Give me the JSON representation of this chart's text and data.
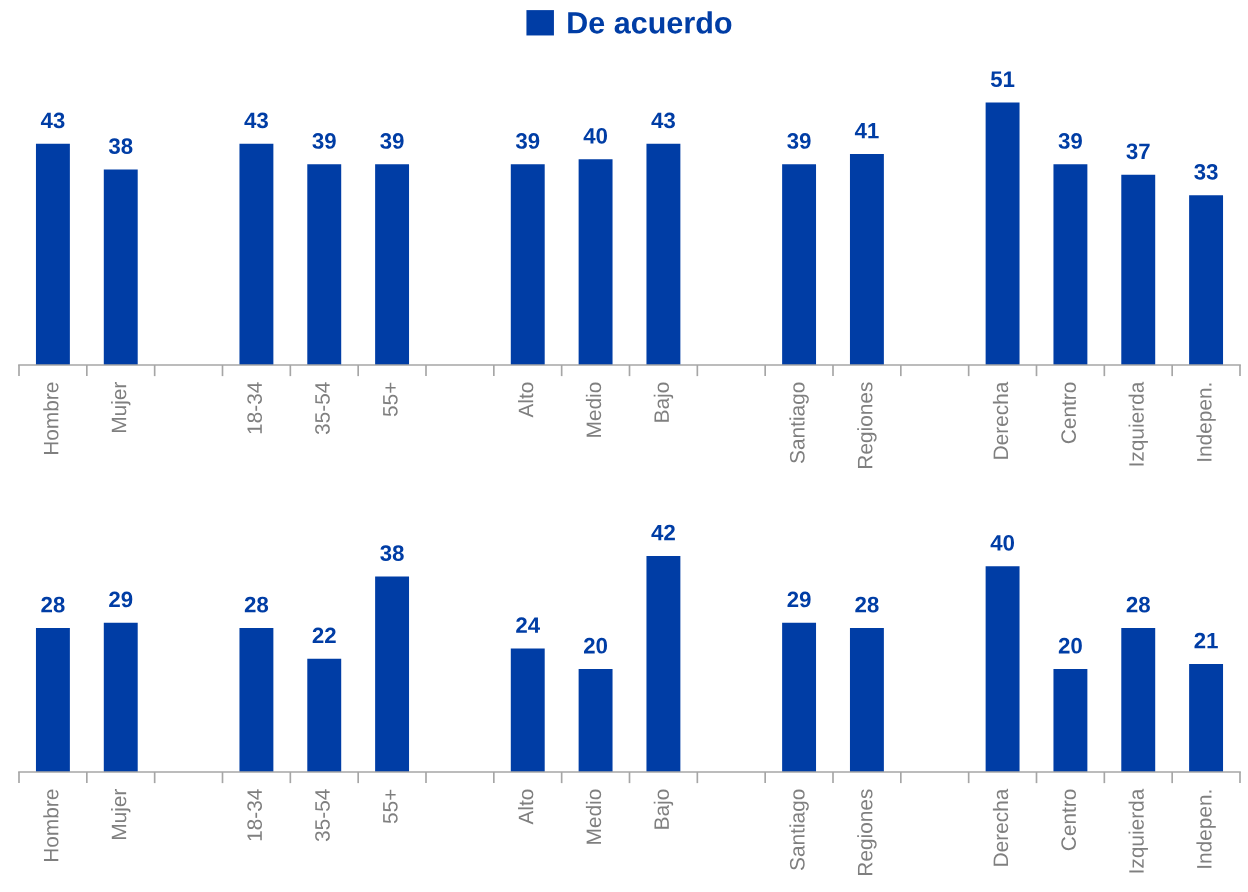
{
  "chart_data": [
    {
      "type": "bar",
      "categories": [
        "Hombre",
        "Mujer",
        null,
        "18-34",
        "35-54",
        "55+",
        null,
        "Alto",
        "Medio",
        "Bajo",
        null,
        "Santiago",
        "Regiones",
        null,
        "Derecha",
        "Centro",
        "Izquierda",
        "Indepen."
      ],
      "series": [
        {
          "name": "De acuerdo",
          "color": "#003da5",
          "values": [
            43,
            38,
            null,
            43,
            39,
            39,
            null,
            39,
            40,
            43,
            null,
            39,
            41,
            null,
            51,
            39,
            37,
            33
          ]
        }
      ],
      "data_labels": true,
      "legend": "top",
      "tick_labels": "x"
    },
    {
      "type": "bar",
      "categories": [
        "Hombre",
        "Mujer",
        null,
        "18-34",
        "35-54",
        "55+",
        null,
        "Alto",
        "Medio",
        "Bajo",
        null,
        "Santiago",
        "Regiones",
        null,
        "Derecha",
        "Centro",
        "Izquierda",
        "Indepen."
      ],
      "series": [
        {
          "color": "#003da5",
          "values": [
            28,
            29,
            null,
            28,
            22,
            38,
            null,
            24,
            20,
            42,
            null,
            29,
            28,
            null,
            40,
            20,
            28,
            21
          ]
        }
      ],
      "data_labels": true,
      "tick_labels": "x"
    }
  ]
}
